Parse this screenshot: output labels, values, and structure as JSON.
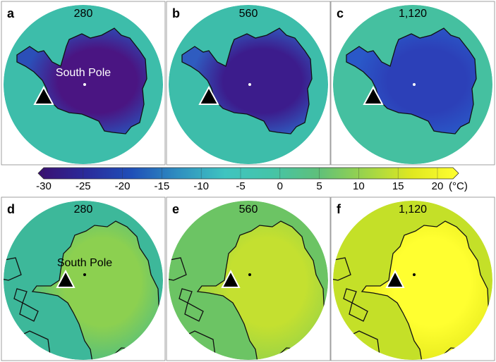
{
  "panels": [
    {
      "letter": "a",
      "title": "280",
      "label": "South Pole"
    },
    {
      "letter": "b",
      "title": "560"
    },
    {
      "letter": "c",
      "title": "1,120"
    },
    {
      "letter": "d",
      "title": "280",
      "label": "South Pole"
    },
    {
      "letter": "e",
      "title": "560"
    },
    {
      "letter": "f",
      "title": "1,120"
    }
  ],
  "colorbar": {
    "lim": [
      -30,
      20
    ],
    "ticks": [
      -30,
      -25,
      -20,
      -15,
      -10,
      -5,
      0,
      5,
      10,
      15,
      20
    ],
    "unit": "(°C)",
    "colors": [
      "#3b0f70",
      "#2a2a9a",
      "#1f4fb8",
      "#2f8fc0",
      "#3fc4c0",
      "#45c4a8",
      "#5fc07a",
      "#9cd44a",
      "#e0e820",
      "#ffff30"
    ]
  }
}
